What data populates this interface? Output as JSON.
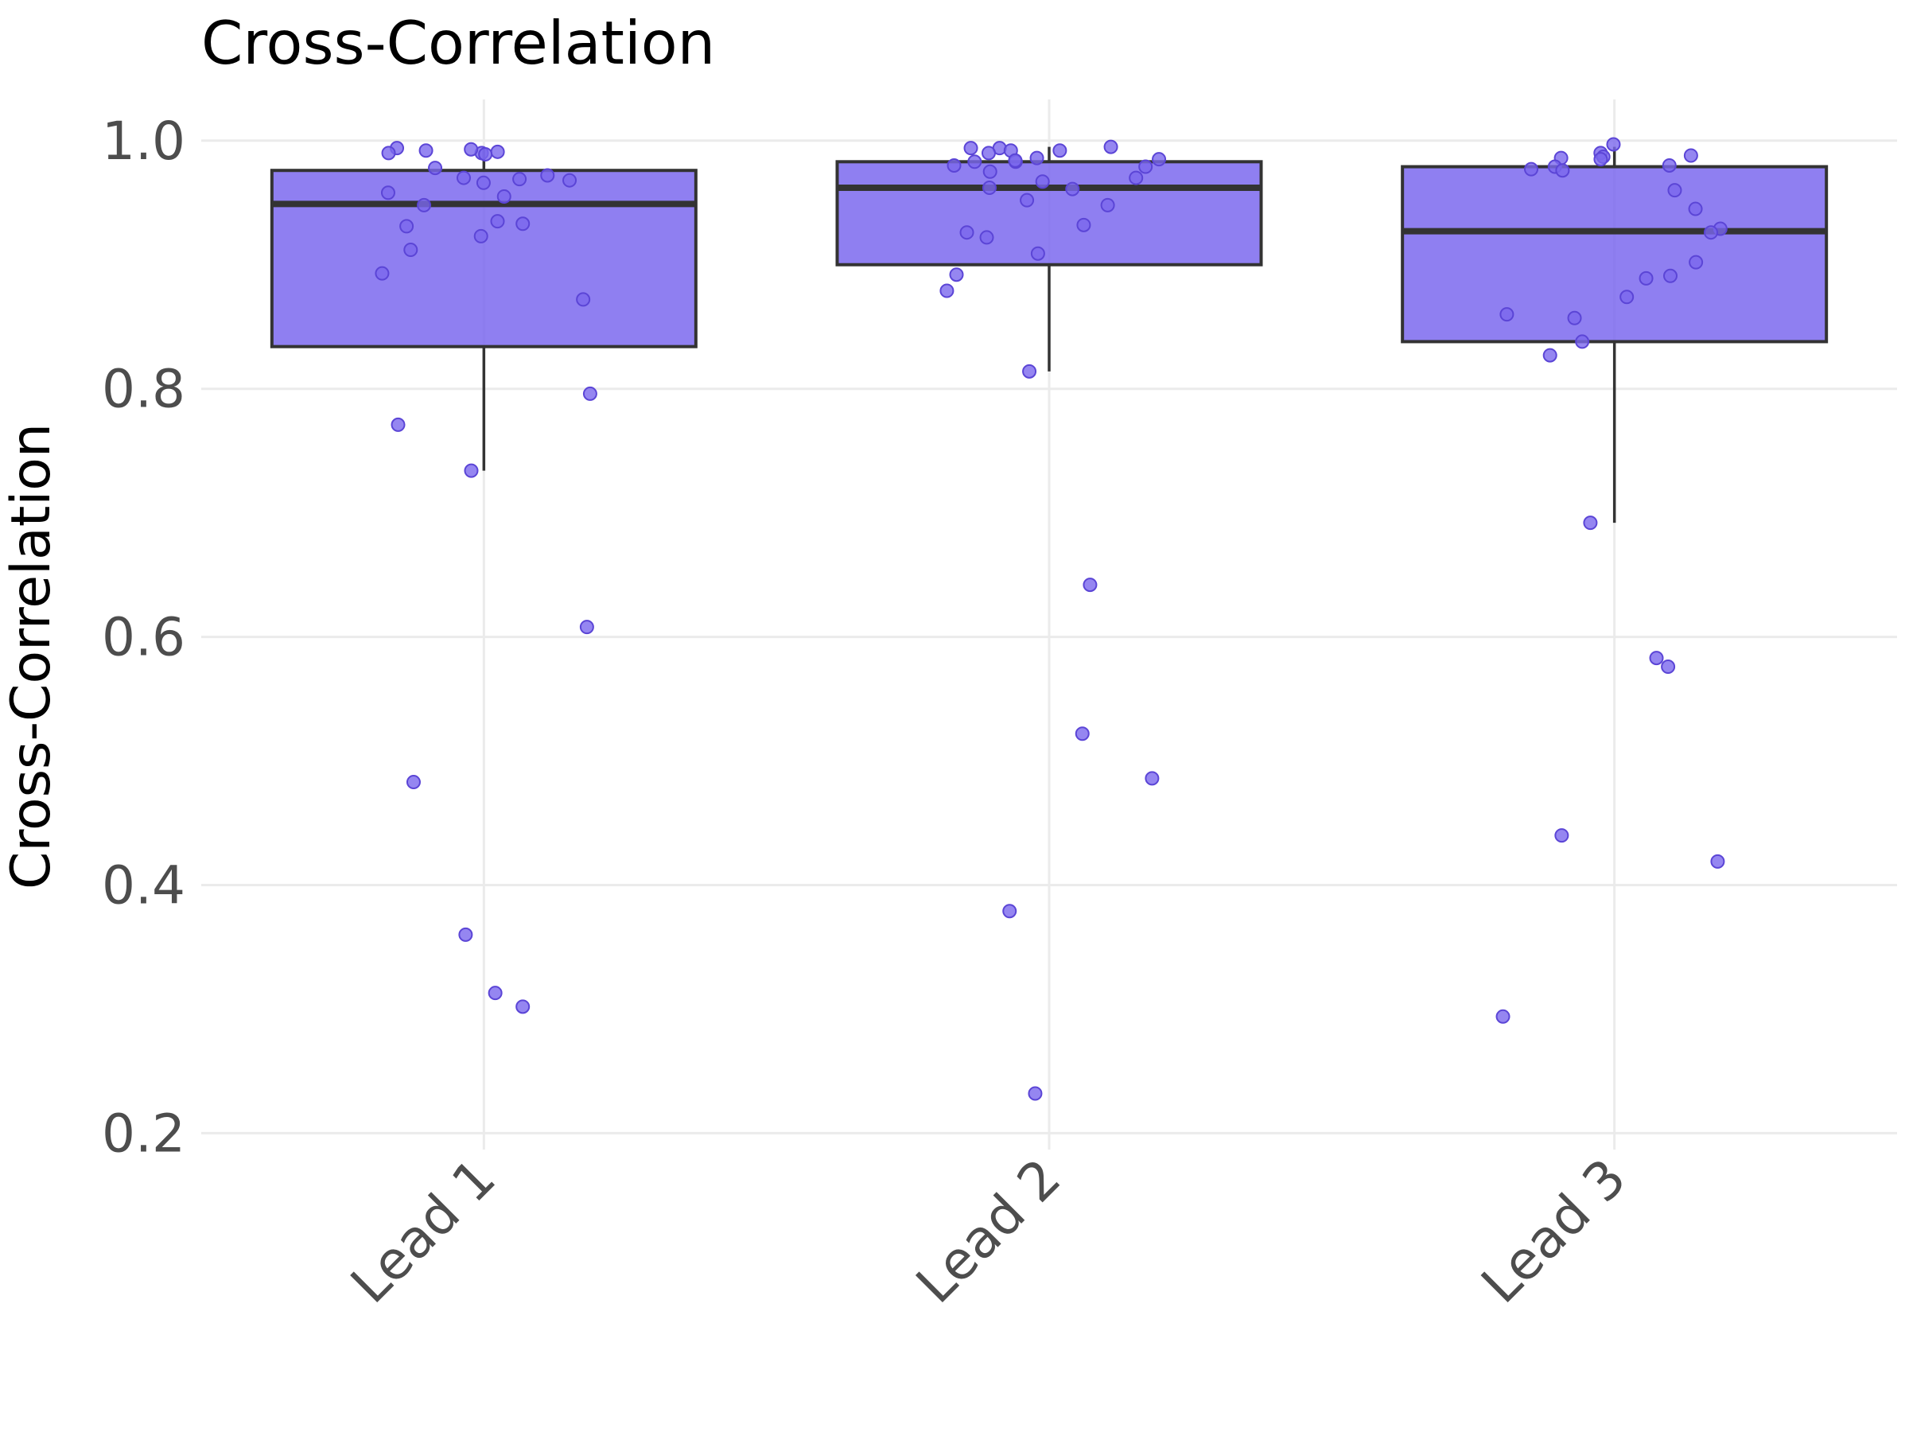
{
  "chart_data": {
    "type": "box",
    "title": "Cross-Correlation",
    "xlabel": "",
    "ylabel": "Cross-Correlation",
    "categories": [
      "Lead 1",
      "Lead 2",
      "Lead 3"
    ],
    "ylim": [
      0.19,
      1.03
    ],
    "yticks": [
      0.2,
      0.4,
      0.6,
      0.8,
      1.0
    ],
    "ytick_labels": [
      "0.2",
      "0.4",
      "0.6",
      "0.8",
      "1.0"
    ],
    "grid": true,
    "box_color": "#7b68ee",
    "boxes": [
      {
        "category": "Lead 1",
        "whisker_low": 0.734,
        "q1": 0.834,
        "median": 0.949,
        "q3": 0.976,
        "whisker_high": 0.994
      },
      {
        "category": "Lead 2",
        "whisker_low": 0.814,
        "q1": 0.9,
        "median": 0.962,
        "q3": 0.983,
        "whisker_high": 0.995
      },
      {
        "category": "Lead 3",
        "whisker_low": 0.692,
        "q1": 0.838,
        "median": 0.927,
        "q3": 0.979,
        "whisker_high": 0.995
      }
    ],
    "points": [
      {
        "category": "Lead 1",
        "values": [
          0.99,
          0.991,
          0.994,
          0.992,
          0.993,
          0.989,
          0.99,
          0.968,
          0.955,
          0.97,
          0.978,
          0.972,
          0.969,
          0.958,
          0.966,
          0.948,
          0.933,
          0.931,
          0.935,
          0.923,
          0.912,
          0.893,
          0.872,
          0.796,
          0.771,
          0.734,
          0.608,
          0.483,
          0.36,
          0.313,
          0.302
        ]
      },
      {
        "category": "Lead 2",
        "values": [
          0.994,
          0.983,
          0.985,
          0.986,
          0.99,
          0.992,
          0.992,
          0.994,
          0.995,
          0.983,
          0.984,
          0.98,
          0.979,
          0.975,
          0.97,
          0.967,
          0.962,
          0.961,
          0.952,
          0.948,
          0.932,
          0.926,
          0.922,
          0.909,
          0.892,
          0.879,
          0.814,
          0.642,
          0.522,
          0.486,
          0.379,
          0.232
        ]
      },
      {
        "category": "Lead 3",
        "values": [
          0.997,
          0.99,
          0.988,
          0.987,
          0.985,
          0.986,
          0.979,
          0.98,
          0.977,
          0.976,
          0.96,
          0.945,
          0.929,
          0.926,
          0.902,
          0.891,
          0.889,
          0.874,
          0.86,
          0.857,
          0.838,
          0.827,
          0.692,
          0.583,
          0.576,
          0.44,
          0.419,
          0.294
        ]
      }
    ]
  }
}
